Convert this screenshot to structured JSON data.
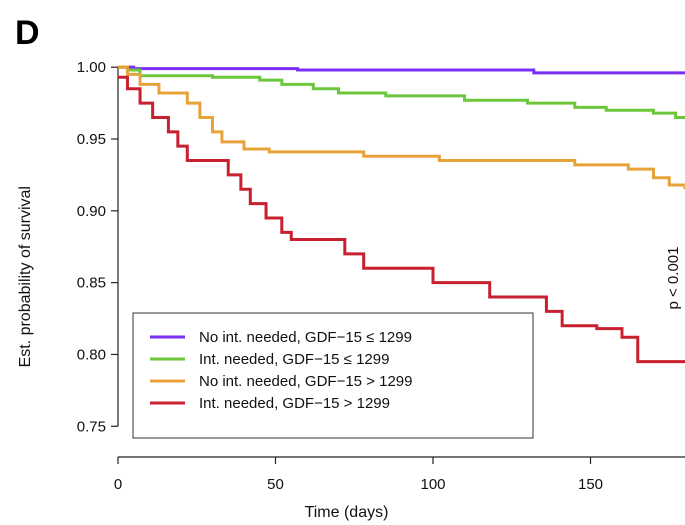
{
  "panel_label": "D",
  "chart_data": {
    "type": "line",
    "subtype": "kaplan-meier-step",
    "title": "",
    "xlabel": "Time (days)",
    "ylabel": "Est. probability of survival",
    "xlim": [
      0,
      180
    ],
    "ylim": [
      0.73,
      1.005
    ],
    "x_ticks": [
      0,
      50,
      100,
      150
    ],
    "x_tick_labels": [
      "0",
      "50",
      "100",
      "150"
    ],
    "y_ticks": [
      0.75,
      0.8,
      0.85,
      0.9,
      0.95,
      1.0
    ],
    "y_tick_labels": [
      "0.75",
      "0.80",
      "0.85",
      "0.90",
      "0.95",
      "1.00"
    ],
    "grid": false,
    "legend_position": "bottom-left",
    "annotation": "p < 0.001",
    "series": [
      {
        "name": "No int. needed, GDF−15 ≤ 1299",
        "color": "#7b2ff7",
        "points": [
          [
            0,
            1.0
          ],
          [
            5,
            0.999
          ],
          [
            57,
            0.998
          ],
          [
            132,
            0.996
          ],
          [
            180,
            0.996
          ]
        ]
      },
      {
        "name": "Int. needed, GDF−15 ≤ 1299",
        "color": "#6dc73d",
        "points": [
          [
            0,
            1.0
          ],
          [
            3,
            0.998
          ],
          [
            7,
            0.994
          ],
          [
            30,
            0.993
          ],
          [
            45,
            0.991
          ],
          [
            52,
            0.988
          ],
          [
            62,
            0.985
          ],
          [
            70,
            0.982
          ],
          [
            85,
            0.98
          ],
          [
            110,
            0.977
          ],
          [
            130,
            0.975
          ],
          [
            145,
            0.972
          ],
          [
            155,
            0.97
          ],
          [
            170,
            0.968
          ],
          [
            177,
            0.965
          ],
          [
            180,
            0.965
          ]
        ]
      },
      {
        "name": "No int. needed, GDF−15 > 1299",
        "color": "#e8a23a",
        "points": [
          [
            0,
            1.0
          ],
          [
            3,
            0.995
          ],
          [
            7,
            0.988
          ],
          [
            13,
            0.982
          ],
          [
            22,
            0.975
          ],
          [
            26,
            0.965
          ],
          [
            30,
            0.955
          ],
          [
            33,
            0.948
          ],
          [
            40,
            0.943
          ],
          [
            48,
            0.941
          ],
          [
            78,
            0.938
          ],
          [
            102,
            0.935
          ],
          [
            145,
            0.932
          ],
          [
            162,
            0.929
          ],
          [
            170,
            0.923
          ],
          [
            175,
            0.918
          ],
          [
            180,
            0.915
          ]
        ]
      },
      {
        "name": "Int. needed, GDF−15 > 1299",
        "color": "#c8202f",
        "points": [
          [
            0,
            0.993
          ],
          [
            3,
            0.985
          ],
          [
            7,
            0.975
          ],
          [
            11,
            0.965
          ],
          [
            16,
            0.955
          ],
          [
            19,
            0.945
          ],
          [
            22,
            0.935
          ],
          [
            35,
            0.925
          ],
          [
            39,
            0.915
          ],
          [
            42,
            0.905
          ],
          [
            47,
            0.895
          ],
          [
            52,
            0.885
          ],
          [
            55,
            0.88
          ],
          [
            72,
            0.87
          ],
          [
            78,
            0.86
          ],
          [
            100,
            0.85
          ],
          [
            118,
            0.84
          ],
          [
            136,
            0.83
          ],
          [
            141,
            0.82
          ],
          [
            152,
            0.818
          ],
          [
            160,
            0.812
          ],
          [
            165,
            0.795
          ],
          [
            180,
            0.795
          ]
        ]
      }
    ]
  }
}
